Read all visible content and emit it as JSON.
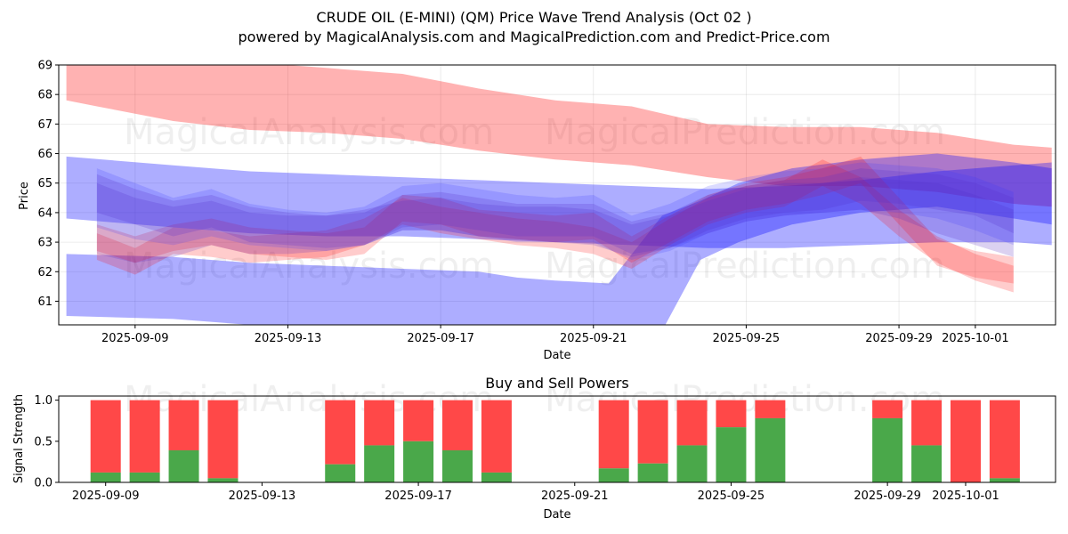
{
  "chart_data": [
    {
      "type": "area",
      "title": "CRUDE OIL (E-MINI) (QM) Price Wave Trend Analysis (Oct 02 )",
      "subtitle": "powered by MagicalAnalysis.com and MagicalPrediction.com and Predict-Price.com",
      "xlabel": "Date",
      "ylabel": "Price",
      "ylim": [
        60.2,
        69.0
      ],
      "xlim_days": [
        -1.0,
        25.1
      ],
      "x_origin": "2025-09-08",
      "yticks": [
        61,
        62,
        63,
        64,
        65,
        66,
        67,
        68,
        69
      ],
      "xticks": [
        {
          "day": 1,
          "label": "2025-09-09"
        },
        {
          "day": 5,
          "label": "2025-09-13"
        },
        {
          "day": 9,
          "label": "2025-09-17"
        },
        {
          "day": 13,
          "label": "2025-09-21"
        },
        {
          "day": 17,
          "label": "2025-09-25"
        },
        {
          "day": 21,
          "label": "2025-09-29"
        },
        {
          "day": 23,
          "label": "2025-10-01"
        }
      ],
      "grid": true,
      "watermarks": [
        "MagicalAnalysis.com",
        "MagicalPrediction.com"
      ],
      "series": [
        {
          "name": "red-upper-band",
          "color": "#ff0000",
          "opacity": 0.3,
          "x": [
            -0.8,
            0,
            2,
            4,
            6,
            8,
            10,
            12,
            14,
            16,
            18,
            20,
            22,
            24,
            25
          ],
          "upper": [
            69.5,
            69.3,
            69.2,
            69.1,
            68.9,
            68.7,
            68.2,
            67.8,
            67.6,
            67.0,
            66.9,
            66.9,
            66.7,
            66.3,
            66.2
          ],
          "lower": [
            67.8,
            67.6,
            67.1,
            66.8,
            66.7,
            66.5,
            66.1,
            65.8,
            65.6,
            65.2,
            64.9,
            64.9,
            64.7,
            64.3,
            64.2
          ]
        },
        {
          "name": "blue-upper-band",
          "color": "#0000ff",
          "opacity": 0.32,
          "x": [
            -0.8,
            2,
            4,
            6,
            8,
            10,
            12,
            14,
            16,
            18,
            20,
            22,
            24,
            25
          ],
          "upper": [
            65.9,
            65.6,
            65.4,
            65.3,
            65.2,
            65.1,
            65.0,
            64.9,
            64.8,
            64.9,
            65.1,
            65.4,
            65.6,
            65.7
          ],
          "lower": [
            63.8,
            63.5,
            63.3,
            63.2,
            63.2,
            63.1,
            63.0,
            62.9,
            62.8,
            62.8,
            62.9,
            63.0,
            63.0,
            62.9
          ]
        },
        {
          "name": "blue-lower-band",
          "color": "#0000ff",
          "opacity": 0.32,
          "x": [
            -0.8,
            2,
            4,
            6,
            8,
            10,
            11,
            12,
            13.4,
            14.8,
            15.8,
            16.8,
            18.2,
            20,
            22,
            24,
            25
          ],
          "upper": [
            62.6,
            62.5,
            62.3,
            62.2,
            62.1,
            62.0,
            61.8,
            61.7,
            61.6,
            63.9,
            64.4,
            65.0,
            65.5,
            65.8,
            66.0,
            65.7,
            65.5
          ],
          "lower": [
            60.5,
            60.4,
            60.2,
            60.0,
            59.8,
            59.5,
            59.3,
            59.2,
            59.2,
            60.0,
            62.4,
            63.0,
            63.6,
            64.0,
            64.2,
            63.8,
            63.6
          ]
        },
        {
          "name": "red-wave-1",
          "color": "#ff0000",
          "opacity": 0.2,
          "x": [
            0,
            1,
            2,
            3,
            4,
            5,
            6,
            7,
            8,
            9,
            10,
            11,
            12,
            13,
            14,
            15,
            16,
            17,
            18,
            19,
            20,
            21,
            22,
            23,
            24
          ],
          "upper": [
            63.6,
            63.2,
            63.6,
            63.8,
            63.5,
            63.4,
            63.3,
            63.5,
            64.6,
            64.5,
            64.1,
            64.0,
            63.9,
            64.0,
            63.2,
            63.9,
            64.6,
            65.0,
            65.2,
            65.5,
            65.9,
            64.5,
            63.1,
            62.7,
            62.5
          ],
          "lower": [
            62.7,
            62.3,
            62.7,
            62.9,
            62.6,
            62.5,
            62.4,
            62.6,
            63.7,
            63.6,
            63.2,
            63.1,
            63.0,
            63.1,
            62.3,
            63.0,
            63.7,
            64.1,
            64.3,
            64.6,
            65.0,
            63.6,
            62.2,
            61.8,
            61.6
          ]
        },
        {
          "name": "red-wave-2",
          "color": "#ff0000",
          "opacity": 0.2,
          "x": [
            0,
            1,
            2,
            3,
            4,
            5,
            6,
            7,
            8,
            9,
            10,
            11,
            12,
            13,
            14,
            15,
            16,
            17,
            18,
            19,
            20,
            21,
            22,
            23,
            24
          ],
          "upper": [
            63.3,
            62.8,
            63.5,
            63.4,
            63.2,
            63.3,
            63.4,
            63.8,
            64.5,
            64.2,
            64.0,
            63.8,
            63.7,
            63.5,
            63.0,
            63.8,
            64.5,
            64.9,
            65.1,
            65.8,
            65.2,
            64.1,
            63.2,
            62.6,
            62.2
          ],
          "lower": [
            62.4,
            61.9,
            62.6,
            62.5,
            62.3,
            62.4,
            62.5,
            62.9,
            63.6,
            63.3,
            63.1,
            62.9,
            62.8,
            62.6,
            62.1,
            62.9,
            63.6,
            64.0,
            64.2,
            64.9,
            64.3,
            63.2,
            62.3,
            61.7,
            61.3
          ]
        },
        {
          "name": "purple-wave-1",
          "color": "#5b2dbd",
          "opacity": 0.22,
          "x": [
            0,
            1,
            2,
            3,
            4,
            5,
            6,
            7,
            8,
            9,
            10,
            11,
            12,
            13,
            14,
            15,
            16,
            17,
            18,
            19,
            20,
            21,
            22,
            23,
            24
          ],
          "upper": [
            65.3,
            64.8,
            64.4,
            64.6,
            64.2,
            64.0,
            63.9,
            64.0,
            64.6,
            64.7,
            64.5,
            64.3,
            64.3,
            64.3,
            63.7,
            64.0,
            64.6,
            64.9,
            65.1,
            65.2,
            65.5,
            65.4,
            65.3,
            65.0,
            64.5
          ],
          "lower": [
            64.0,
            63.6,
            63.2,
            63.5,
            63.0,
            62.9,
            62.8,
            62.9,
            63.5,
            63.6,
            63.4,
            63.2,
            63.2,
            63.2,
            62.6,
            62.8,
            63.4,
            63.8,
            64.0,
            64.1,
            64.4,
            64.3,
            64.1,
            63.9,
            63.3
          ]
        },
        {
          "name": "purple-wave-2",
          "color": "#5b2dbd",
          "opacity": 0.22,
          "x": [
            0,
            1,
            2,
            3,
            4,
            5,
            6,
            7,
            8,
            9,
            10,
            11,
            12,
            13,
            14,
            15,
            16,
            17,
            18,
            19,
            20,
            21,
            22,
            23,
            24
          ],
          "upper": [
            65.0,
            64.5,
            64.2,
            64.4,
            64.0,
            63.9,
            63.9,
            64.1,
            64.4,
            64.5,
            64.3,
            64.2,
            64.2,
            64.1,
            63.6,
            63.9,
            64.4,
            64.8,
            65.0,
            65.0,
            65.2,
            65.1,
            65.0,
            64.6,
            64.1
          ],
          "lower": [
            62.6,
            62.3,
            62.5,
            62.9,
            62.6,
            62.6,
            62.7,
            62.9,
            63.4,
            63.4,
            63.2,
            63.1,
            63.0,
            62.9,
            62.5,
            62.8,
            63.3,
            63.7,
            63.9,
            64.0,
            64.1,
            63.8,
            63.3,
            62.9,
            62.5
          ]
        },
        {
          "name": "blue-wave-1",
          "color": "#3a3aff",
          "opacity": 0.18,
          "x": [
            0,
            1,
            2,
            3,
            4,
            5,
            6,
            7,
            8,
            9,
            10,
            11,
            12,
            13,
            14,
            15,
            16,
            17,
            18,
            19,
            20,
            21,
            22,
            23,
            24
          ],
          "upper": [
            65.5,
            65.0,
            64.5,
            64.8,
            64.3,
            64.1,
            64.0,
            64.2,
            64.9,
            65.0,
            64.8,
            64.6,
            64.5,
            64.6,
            63.9,
            64.3,
            64.9,
            65.2,
            65.4,
            65.5,
            65.7,
            65.6,
            65.5,
            65.2,
            64.7
          ],
          "lower": [
            63.5,
            63.1,
            62.9,
            63.2,
            62.9,
            62.8,
            62.7,
            62.9,
            63.4,
            63.4,
            63.2,
            63.0,
            63.0,
            63.0,
            62.4,
            62.7,
            63.3,
            63.7,
            63.9,
            64.0,
            64.1,
            64.0,
            63.8,
            63.4,
            62.9
          ]
        }
      ]
    },
    {
      "type": "bar",
      "title": "Buy and Sell Powers",
      "xlabel": "Date",
      "ylabel": "Signal Strength",
      "ylim": [
        0,
        1.05
      ],
      "yticks": [
        {
          "value": 0.0,
          "label": "0.0"
        },
        {
          "value": 0.5,
          "label": "0.5"
        },
        {
          "value": 1.0,
          "label": "1.0"
        }
      ],
      "xticks": [
        {
          "day": 0,
          "label": "2025-09-09"
        },
        {
          "day": 4,
          "label": "2025-09-13"
        },
        {
          "day": 8,
          "label": "2025-09-17"
        },
        {
          "day": 12,
          "label": "2025-09-21"
        },
        {
          "day": 16,
          "label": "2025-09-25"
        },
        {
          "day": 20,
          "label": "2025-09-29"
        },
        {
          "day": 22,
          "label": "2025-10-01"
        }
      ],
      "xlim_days": [
        -1.2,
        24.3
      ],
      "series": [
        {
          "name": "Buy",
          "color": "#4aa84a"
        },
        {
          "name": "Sell",
          "color": "#ff4848"
        }
      ],
      "bars": [
        {
          "day": 0,
          "buy": 0.12
        },
        {
          "day": 1,
          "buy": 0.12
        },
        {
          "day": 2,
          "buy": 0.39
        },
        {
          "day": 3,
          "buy": 0.05
        },
        {
          "day": 6,
          "buy": 0.22
        },
        {
          "day": 7,
          "buy": 0.45
        },
        {
          "day": 8,
          "buy": 0.5
        },
        {
          "day": 9,
          "buy": 0.39
        },
        {
          "day": 10,
          "buy": 0.12
        },
        {
          "day": 13,
          "buy": 0.17
        },
        {
          "day": 14,
          "buy": 0.23
        },
        {
          "day": 15,
          "buy": 0.45
        },
        {
          "day": 16,
          "buy": 0.67
        },
        {
          "day": 17,
          "buy": 0.78
        },
        {
          "day": 20,
          "buy": 0.78
        },
        {
          "day": 21,
          "buy": 0.45
        },
        {
          "day": 22,
          "buy": 0.0
        },
        {
          "day": 23,
          "buy": 0.05
        }
      ],
      "watermarks": [
        "MagicalAnalysis.com",
        "MagicalPrediction.com"
      ]
    }
  ]
}
